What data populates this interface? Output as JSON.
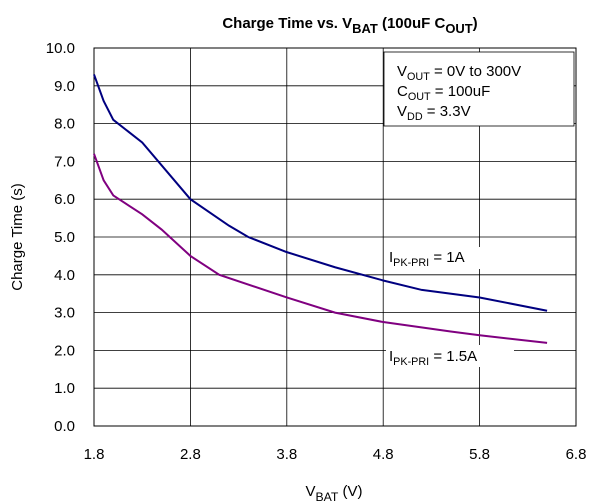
{
  "chart_data": {
    "type": "line",
    "title": [
      "Charge Time vs. V",
      "BAT",
      " (100uF C",
      "OUT",
      ")"
    ],
    "xlabel": [
      "V",
      "BAT",
      " (V)"
    ],
    "ylabel": "Charge Time (s)",
    "annotations": [
      [
        "V",
        "OUT",
        " = 0V to 300V"
      ],
      [
        "C",
        "OUT",
        " = 100uF"
      ],
      [
        "V",
        "DD",
        " = 3.3V"
      ]
    ],
    "xlim": [
      1.8,
      6.8
    ],
    "xticks": [
      1.8,
      2.8,
      3.8,
      4.8,
      5.8,
      6.8
    ],
    "ylim": [
      0,
      10
    ],
    "yticks": [
      {
        "value": 0,
        "label": "0.0"
      },
      {
        "value": 1,
        "label": "1.0"
      },
      {
        "value": 2,
        "label": "2.0"
      },
      {
        "value": 3,
        "label": "3.0"
      },
      {
        "value": 4,
        "label": "4.0"
      },
      {
        "value": 5,
        "label": "5.0"
      },
      {
        "value": 6,
        "label": "6.0"
      },
      {
        "value": 7,
        "label": "7.0"
      },
      {
        "value": 8,
        "label": "8.0"
      },
      {
        "value": 9,
        "label": "9.0"
      },
      {
        "value": 10,
        "label": "10.0"
      }
    ],
    "grid": true,
    "series": [
      {
        "name": [
          "I",
          "PK-PRI",
          " = 1A"
        ],
        "color": "#000080",
        "x": [
          1.8,
          1.9,
          2.0,
          2.3,
          2.8,
          3.2,
          3.4,
          3.8,
          4.3,
          4.8,
          5.2,
          5.8,
          6.5
        ],
        "values": [
          9.3,
          8.6,
          8.1,
          7.5,
          6.0,
          5.3,
          5.0,
          4.6,
          4.2,
          3.85,
          3.6,
          3.4,
          3.05
        ]
      },
      {
        "name": [
          "I",
          "PK-PRI",
          " = 1.5A"
        ],
        "color": "#800080",
        "x": [
          1.8,
          1.9,
          2.0,
          2.3,
          2.5,
          2.8,
          3.1,
          3.8,
          4.3,
          4.8,
          5.5,
          5.8,
          6.5
        ],
        "values": [
          7.2,
          6.5,
          6.1,
          5.6,
          5.2,
          4.5,
          4.0,
          3.4,
          3.0,
          2.75,
          2.5,
          2.4,
          2.2
        ]
      }
    ]
  }
}
